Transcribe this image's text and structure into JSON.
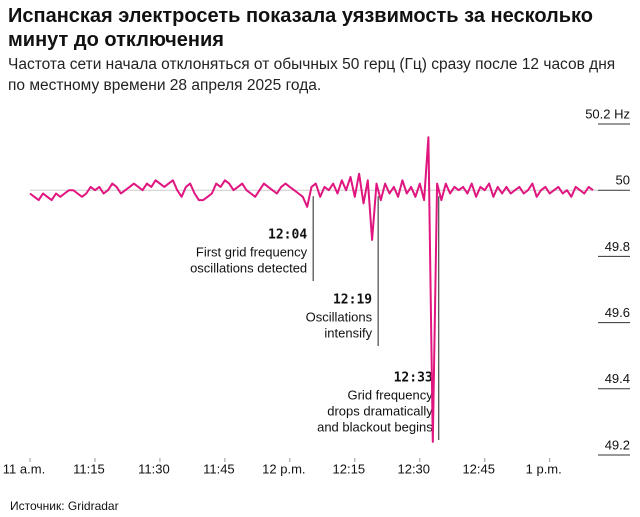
{
  "chart_data": {
    "type": "line",
    "title": "Испанская электросеть показала уязвимость за несколько минут до отключения",
    "subtitle": "Частота сети начала отклоняться от обычных 50 герц (Гц) сразу после 12 часов дня по местному времени 28 апреля 2025 года.",
    "source": "Источник: Gridradar",
    "x": [
      "11:00",
      "11:01",
      "11:02",
      "11:03",
      "11:04",
      "11:05",
      "11:06",
      "11:07",
      "11:08",
      "11:09",
      "11:10",
      "11:11",
      "11:12",
      "11:13",
      "11:14",
      "11:15",
      "11:16",
      "11:17",
      "11:18",
      "11:19",
      "11:20",
      "11:21",
      "11:22",
      "11:23",
      "11:24",
      "11:25",
      "11:26",
      "11:27",
      "11:28",
      "11:29",
      "11:30",
      "11:31",
      "11:32",
      "11:33",
      "11:34",
      "11:35",
      "11:36",
      "11:37",
      "11:38",
      "11:39",
      "11:40",
      "11:41",
      "11:42",
      "11:43",
      "11:44",
      "11:45",
      "11:46",
      "11:47",
      "11:48",
      "11:49",
      "11:50",
      "11:51",
      "11:52",
      "11:53",
      "11:54",
      "11:55",
      "11:56",
      "11:57",
      "11:58",
      "11:59",
      "12:00",
      "12:01",
      "12:02",
      "12:03",
      "12:04",
      "12:05",
      "12:06",
      "12:07",
      "12:08",
      "12:09",
      "12:10",
      "12:11",
      "12:12",
      "12:13",
      "12:14",
      "12:15",
      "12:16",
      "12:17",
      "12:18",
      "12:19",
      "12:20",
      "12:21",
      "12:22",
      "12:23",
      "12:24",
      "12:25",
      "12:26",
      "12:27",
      "12:28",
      "12:29",
      "12:30",
      "12:31",
      "12:32",
      "12:33",
      "12:34",
      "12:35",
      "12:36",
      "12:37",
      "12:38",
      "12:39",
      "12:40",
      "12:41",
      "12:42",
      "12:43",
      "12:44",
      "12:45",
      "12:46",
      "12:47",
      "12:48",
      "12:49",
      "12:50",
      "12:51",
      "12:52",
      "12:53",
      "12:54",
      "12:55",
      "12:56",
      "12:57",
      "12:58",
      "12:59",
      "13:00",
      "13:01",
      "13:02",
      "13:03",
      "13:04",
      "13:05",
      "13:06",
      "13:07",
      "13:08",
      "13:09",
      "13:10"
    ],
    "series": [
      {
        "color": "#e0157f",
        "values": [
          49.99,
          49.98,
          49.97,
          49.99,
          49.98,
          49.97,
          49.99,
          49.98,
          49.99,
          50.0,
          50.0,
          49.99,
          49.98,
          49.99,
          50.01,
          50.0,
          50.01,
          49.99,
          50.0,
          50.02,
          50.01,
          49.99,
          50.0,
          50.01,
          50.02,
          50.01,
          50.0,
          50.02,
          50.01,
          50.03,
          50.02,
          50.01,
          50.02,
          50.03,
          50.0,
          49.98,
          50.01,
          50.02,
          49.99,
          49.97,
          49.97,
          49.98,
          49.99,
          50.02,
          50.01,
          50.03,
          50.02,
          50.0,
          50.01,
          50.02,
          50.0,
          49.99,
          49.98,
          50.0,
          50.02,
          50.01,
          50.0,
          49.99,
          50.01,
          50.02,
          50.01,
          50.0,
          49.99,
          49.98,
          49.95,
          50.01,
          50.02,
          49.98,
          50.01,
          50.0,
          50.02,
          49.99,
          50.03,
          50.0,
          50.04,
          49.98,
          50.05,
          49.96,
          50.03,
          49.85,
          50.02,
          49.97,
          50.02,
          49.99,
          50.01,
          49.98,
          50.03,
          49.99,
          50.01,
          49.98,
          50.02,
          49.97,
          50.16,
          49.24,
          50.02,
          49.97,
          50.02,
          49.99,
          50.01,
          50.0,
          50.01,
          49.99,
          50.02,
          49.98,
          50.01,
          50.0,
          50.02,
          49.98,
          50.01,
          49.99,
          50.01,
          49.99,
          50.0,
          50.01,
          49.99,
          50.0,
          50.02,
          49.98,
          50.0,
          50.01,
          49.99,
          50.0,
          50.01,
          49.99,
          50.0,
          49.98,
          50.01,
          50.0,
          49.99,
          50.01,
          50.0
        ]
      }
    ],
    "xlim": [
      "11:00",
      "13:10"
    ],
    "xticks": [
      {
        "value": "11:00",
        "label": "11 a.m."
      },
      "11:15",
      "11:30",
      "11:45",
      {
        "value": "12:00",
        "label": "12 p.m."
      },
      "12:15",
      "12:30",
      "12:45",
      {
        "value": "13:00",
        "label": "1 p.m."
      }
    ],
    "ylim": [
      49.2,
      50.2
    ],
    "yticks": [
      {
        "value": 50.2,
        "label": "50.2 Hz"
      },
      50,
      49.8,
      49.6,
      49.4,
      49.2
    ],
    "annotations": [
      {
        "time": "12:04",
        "text": [
          "First grid frequency",
          "oscillations detected"
        ]
      },
      {
        "time": "12:19",
        "text": [
          "Oscillations",
          "intensify"
        ]
      },
      {
        "time": "12:33",
        "text": [
          "Grid frequency",
          "drops dramatically",
          "and blackout begins"
        ]
      }
    ]
  }
}
